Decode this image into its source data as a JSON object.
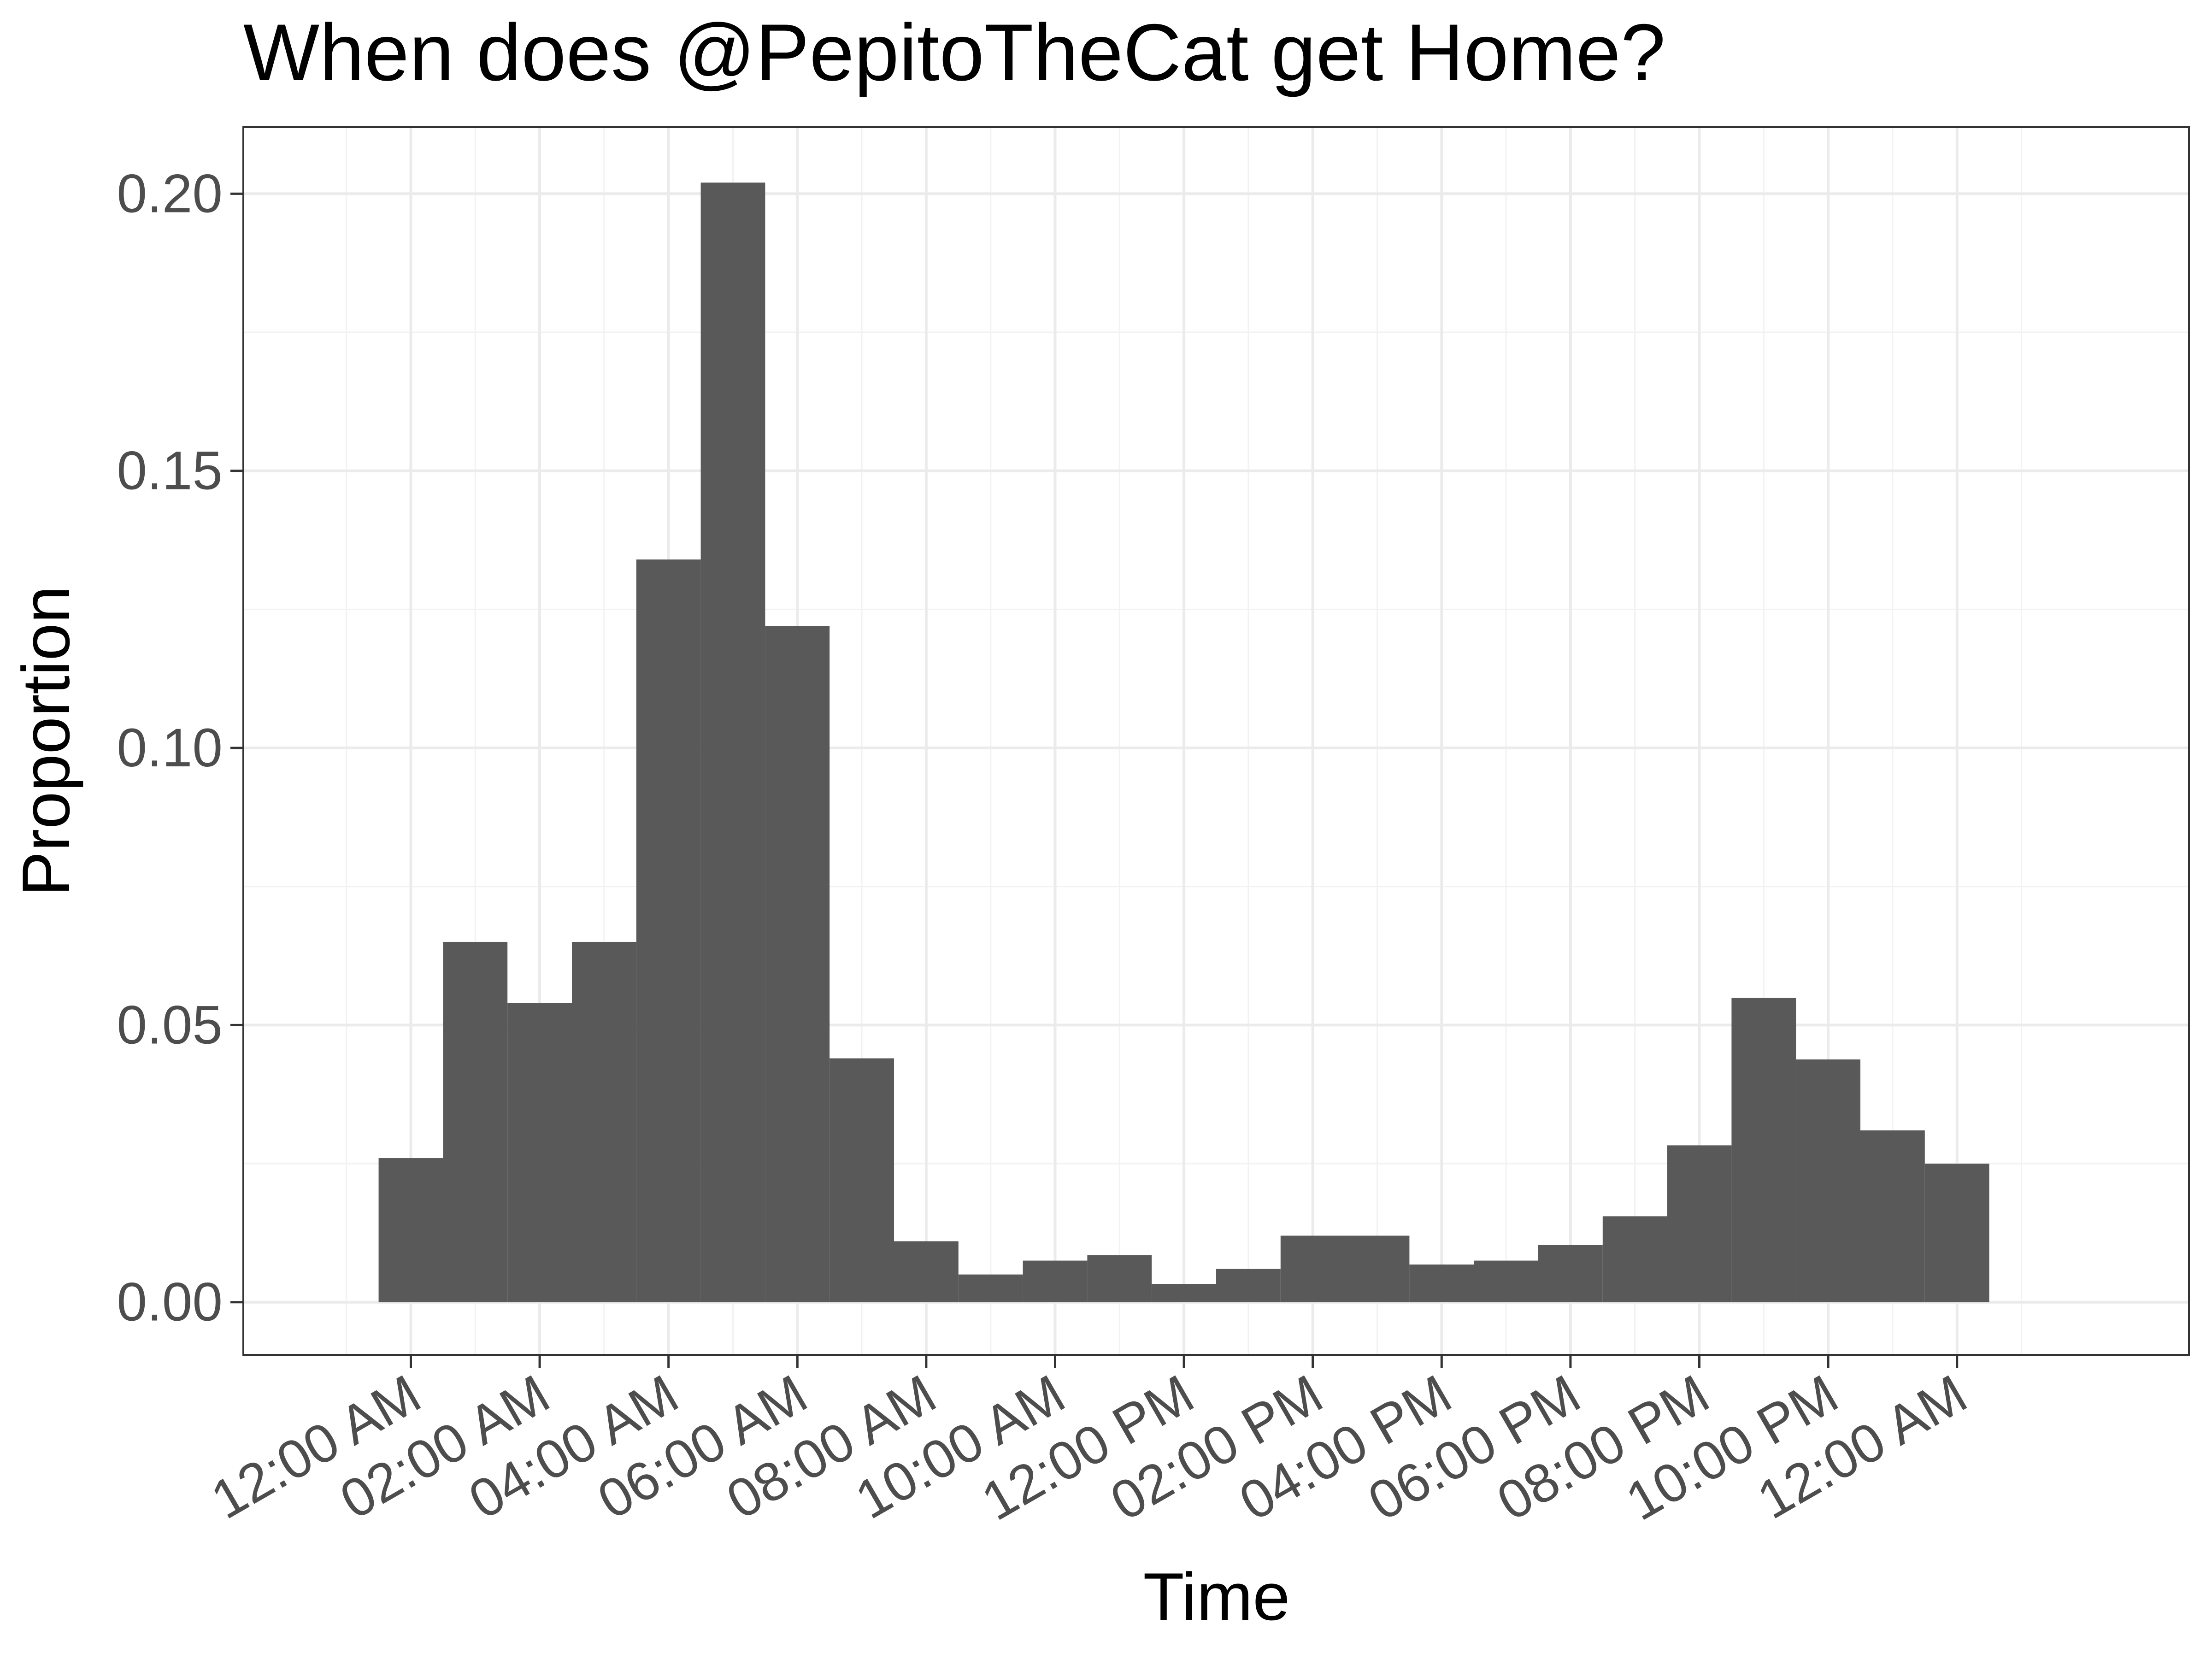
{
  "chart_data": {
    "type": "bar",
    "title": "When does @PepitoTheCat get Home?",
    "xlabel": "Time",
    "ylabel": "Proportion",
    "x_unit": "hour of day",
    "bin_width_hours": 1,
    "x_range_hours": [
      -2.6,
      27.6
    ],
    "ylim": [
      -0.0095,
      0.212
    ],
    "x_ticks": [
      {
        "hour": 0,
        "label": "12:00 AM"
      },
      {
        "hour": 2,
        "label": "02:00 AM"
      },
      {
        "hour": 4,
        "label": "04:00 AM"
      },
      {
        "hour": 6,
        "label": "06:00 AM"
      },
      {
        "hour": 8,
        "label": "08:00 AM"
      },
      {
        "hour": 10,
        "label": "10:00 AM"
      },
      {
        "hour": 12,
        "label": "12:00 PM"
      },
      {
        "hour": 14,
        "label": "02:00 PM"
      },
      {
        "hour": 16,
        "label": "04:00 PM"
      },
      {
        "hour": 18,
        "label": "06:00 PM"
      },
      {
        "hour": 20,
        "label": "08:00 PM"
      },
      {
        "hour": 22,
        "label": "10:00 PM"
      },
      {
        "hour": 24,
        "label": "12:00 AM"
      }
    ],
    "y_ticks": [
      {
        "value": 0.0,
        "label": "0.00"
      },
      {
        "value": 0.05,
        "label": "0.05"
      },
      {
        "value": 0.1,
        "label": "0.10"
      },
      {
        "value": 0.15,
        "label": "0.15"
      },
      {
        "value": 0.2,
        "label": "0.20"
      }
    ],
    "bins": [
      {
        "center_hour": 0,
        "value": 0.026
      },
      {
        "center_hour": 1,
        "value": 0.065
      },
      {
        "center_hour": 2,
        "value": 0.054
      },
      {
        "center_hour": 3,
        "value": 0.065
      },
      {
        "center_hour": 4,
        "value": 0.134
      },
      {
        "center_hour": 5,
        "value": 0.202
      },
      {
        "center_hour": 6,
        "value": 0.122
      },
      {
        "center_hour": 7,
        "value": 0.044
      },
      {
        "center_hour": 8,
        "value": 0.011
      },
      {
        "center_hour": 9,
        "value": 0.005
      },
      {
        "center_hour": 10,
        "value": 0.0075
      },
      {
        "center_hour": 11,
        "value": 0.0085
      },
      {
        "center_hour": 12,
        "value": 0.0033
      },
      {
        "center_hour": 13,
        "value": 0.006
      },
      {
        "center_hour": 14,
        "value": 0.012
      },
      {
        "center_hour": 15,
        "value": 0.012
      },
      {
        "center_hour": 16,
        "value": 0.0068
      },
      {
        "center_hour": 17,
        "value": 0.0075
      },
      {
        "center_hour": 18,
        "value": 0.0103
      },
      {
        "center_hour": 19,
        "value": 0.0155
      },
      {
        "center_hour": 20,
        "value": 0.0283
      },
      {
        "center_hour": 21,
        "value": 0.0549
      },
      {
        "center_hour": 22,
        "value": 0.0438
      },
      {
        "center_hour": 23,
        "value": 0.031
      },
      {
        "center_hour": 24,
        "value": 0.025
      }
    ],
    "grid": true,
    "bar_color": "#595959",
    "grid_major_color": "#ebebeb",
    "grid_minor_color": "#f2f2f2",
    "panel_border_color": "#333333"
  }
}
